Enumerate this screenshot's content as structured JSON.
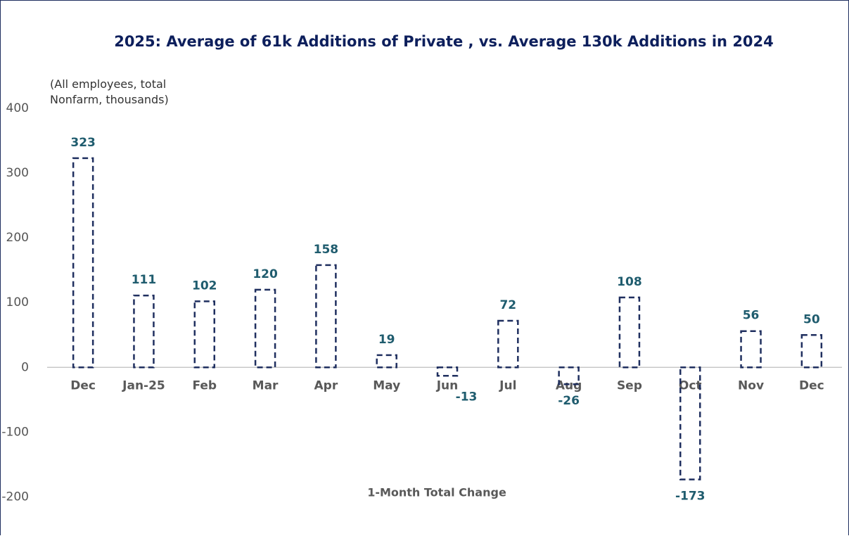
{
  "chart_data": {
    "type": "bar",
    "title": "2025:  Average of 61k Additions of Private , vs. Average 130k Additions in 2024",
    "axis_note": "(All employees,  total Nonfarm, thousands)",
    "series_label": "1-Month Total Change",
    "categories": [
      "Dec",
      "Jan-25",
      "Feb",
      "Mar",
      "Apr",
      "May",
      "Jun",
      "Jul",
      "Aug",
      "Sep",
      "Oct",
      "Nov",
      "Dec"
    ],
    "values": [
      323,
      111,
      102,
      120,
      158,
      19,
      -13,
      72,
      -26,
      108,
      -173,
      56,
      50
    ],
    "color": "#1f2f5f",
    "ylim": [
      -250,
      400
    ],
    "yticks": [
      -200,
      -100,
      0,
      100,
      200,
      300,
      400
    ]
  }
}
